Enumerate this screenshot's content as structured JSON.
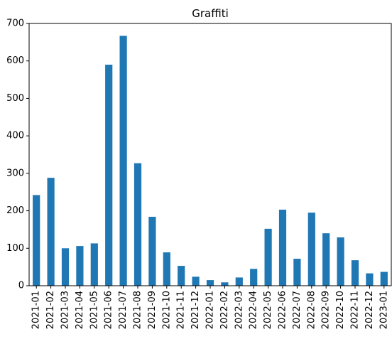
{
  "chart_data": {
    "type": "bar",
    "title": "Graffiti",
    "xlabel": "",
    "ylabel": "",
    "categories": [
      "2021-01",
      "2021-02",
      "2021-03",
      "2021-04",
      "2021-05",
      "2021-06",
      "2021-07",
      "2021-08",
      "2021-09",
      "2021-10",
      "2021-11",
      "2021-12",
      "2022-01",
      "2022-02",
      "2022-03",
      "2022-04",
      "2022-05",
      "2022-06",
      "2022-07",
      "2022-08",
      "2022-09",
      "2022-10",
      "2022-11",
      "2022-12",
      "2023-01"
    ],
    "values": [
      242,
      288,
      100,
      106,
      113,
      590,
      667,
      327,
      184,
      89,
      53,
      24,
      15,
      9,
      22,
      45,
      152,
      203,
      72,
      195,
      140,
      129,
      68,
      33,
      37
    ],
    "ylim": [
      0,
      700
    ],
    "yticks": [
      0,
      100,
      200,
      300,
      400,
      500,
      600,
      700
    ],
    "grid": false,
    "legend": "none",
    "bar_color": "#1f77b4"
  }
}
